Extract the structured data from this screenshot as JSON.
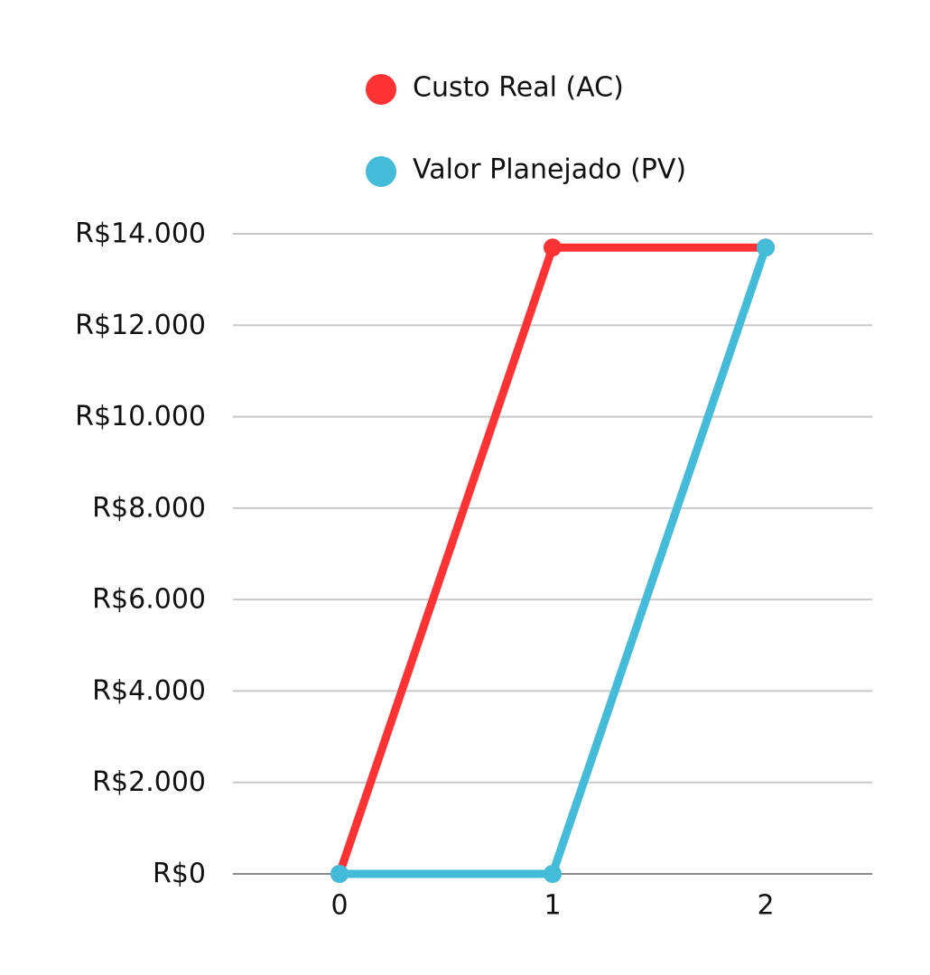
{
  "chart_data": {
    "type": "line",
    "x": [
      0,
      1,
      2
    ],
    "xticks": [
      "0",
      "1",
      "2"
    ],
    "xlim": [
      -0.5,
      2.5
    ],
    "ylim": [
      0,
      14000
    ],
    "yticks": [
      0,
      2000,
      4000,
      6000,
      8000,
      10000,
      12000,
      14000
    ],
    "ytick_labels": [
      "R$0",
      "R$2.000",
      "R$4.000",
      "R$6.000",
      "R$8.000",
      "R$10.000",
      "R$12.000",
      "R$14.000"
    ],
    "grid": "horizontal",
    "legend_position": "top-center",
    "series": [
      {
        "name": "Custo Real (AC)",
        "color": "#ff3333",
        "values": [
          0,
          13700,
          13700
        ]
      },
      {
        "name": "Valor Planejado (PV)",
        "color": "#44bbd8",
        "values": [
          0,
          0,
          13700
        ]
      }
    ]
  }
}
